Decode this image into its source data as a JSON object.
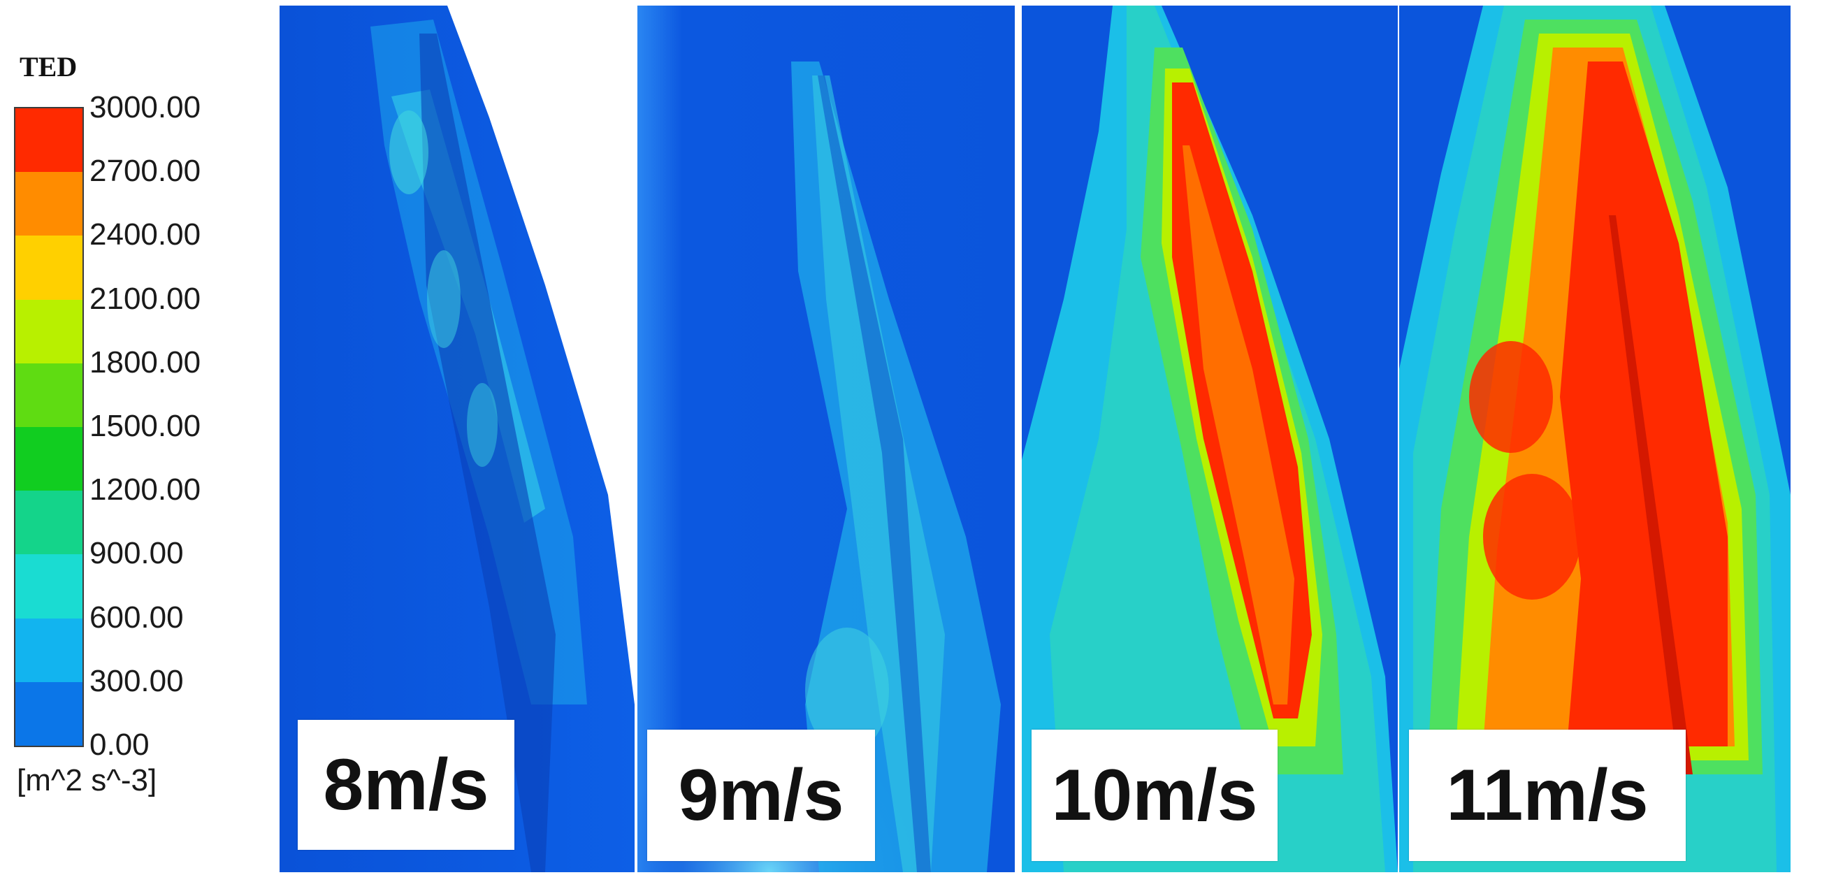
{
  "legend": {
    "title": "TED",
    "unit": "[m^2 s^-3]",
    "ticks": [
      "3000.00",
      "2700.00",
      "2400.00",
      "2100.00",
      "1800.00",
      "1500.00",
      "1200.00",
      "900.00",
      "600.00",
      "300.00",
      "0.00"
    ],
    "band_colors": [
      "#ff2a00",
      "#ff8c00",
      "#ffd000",
      "#b8f000",
      "#5fdc12",
      "#11cd20",
      "#14d48a",
      "#1adcd2",
      "#12b4ef",
      "#0b76e8"
    ],
    "band_colors_note_order": "top-to-bottom"
  },
  "panels": [
    {
      "label": "8m/s"
    },
    {
      "label": "9m/s"
    },
    {
      "label": "10m/s"
    },
    {
      "label": "11m/s"
    }
  ]
}
